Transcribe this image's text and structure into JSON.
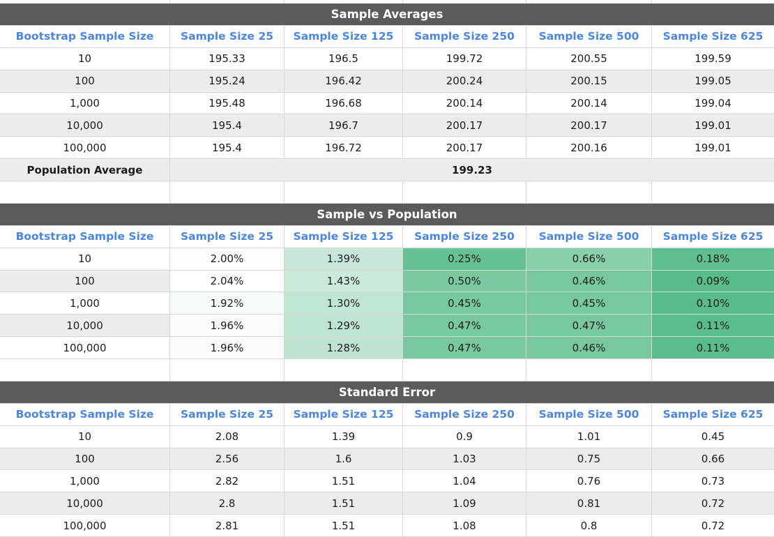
{
  "theme": {
    "band_bg": "#5b5b5b",
    "band_text": "#ffffff",
    "header_text": "#4a86e8",
    "alt_row_bg": "#ececec",
    "border": "#d8d8d8",
    "scale_high_color": "#ffffff",
    "scale_low_color": "#57bb8a"
  },
  "columns": [
    "Bootstrap Sample Size",
    "Sample Size 25",
    "Sample Size 125",
    "Sample Size 250",
    "Sample Size 500",
    "Sample Size 625"
  ],
  "tables": [
    {
      "id": "sample-averages",
      "title": "Sample Averages",
      "rows": [
        {
          "label": "10",
          "values": [
            "195.33",
            "196.5",
            "199.72",
            "200.55",
            "199.59"
          ]
        },
        {
          "label": "100",
          "values": [
            "195.24",
            "196.42",
            "200.24",
            "200.15",
            "199.05"
          ]
        },
        {
          "label": "1,000",
          "values": [
            "195.48",
            "196.68",
            "200.14",
            "200.14",
            "199.04"
          ]
        },
        {
          "label": "10,000",
          "values": [
            "195.4",
            "196.7",
            "200.17",
            "200.17",
            "199.01"
          ]
        },
        {
          "label": "100,000",
          "values": [
            "195.4",
            "196.72",
            "200.17",
            "200.16",
            "199.01"
          ]
        }
      ],
      "footer": {
        "label": "Population Average",
        "value": "199.23"
      }
    },
    {
      "id": "sample-vs-population",
      "title": "Sample vs Population",
      "color_scale": true,
      "rows": [
        {
          "label": "10",
          "values": [
            "2.00%",
            "1.39%",
            "0.25%",
            "0.66%",
            "0.18%"
          ]
        },
        {
          "label": "100",
          "values": [
            "2.04%",
            "1.43%",
            "0.50%",
            "0.46%",
            "0.09%"
          ]
        },
        {
          "label": "1,000",
          "values": [
            "1.92%",
            "1.30%",
            "0.45%",
            "0.45%",
            "0.10%"
          ]
        },
        {
          "label": "10,000",
          "values": [
            "1.96%",
            "1.29%",
            "0.47%",
            "0.47%",
            "0.11%"
          ]
        },
        {
          "label": "100,000",
          "values": [
            "1.96%",
            "1.28%",
            "0.47%",
            "0.46%",
            "0.11%"
          ]
        }
      ]
    },
    {
      "id": "standard-error",
      "title": "Standard Error",
      "rows": [
        {
          "label": "10",
          "values": [
            "2.08",
            "1.39",
            "0.9",
            "1.01",
            "0.45"
          ]
        },
        {
          "label": "100",
          "values": [
            "2.56",
            "1.6",
            "1.03",
            "0.75",
            "0.66"
          ]
        },
        {
          "label": "1,000",
          "values": [
            "2.82",
            "1.51",
            "1.04",
            "0.76",
            "0.73"
          ]
        },
        {
          "label": "10,000",
          "values": [
            "2.8",
            "1.51",
            "1.09",
            "0.81",
            "0.72"
          ]
        },
        {
          "label": "100,000",
          "values": [
            "2.81",
            "1.51",
            "1.08",
            "0.8",
            "0.72"
          ]
        }
      ]
    }
  ]
}
